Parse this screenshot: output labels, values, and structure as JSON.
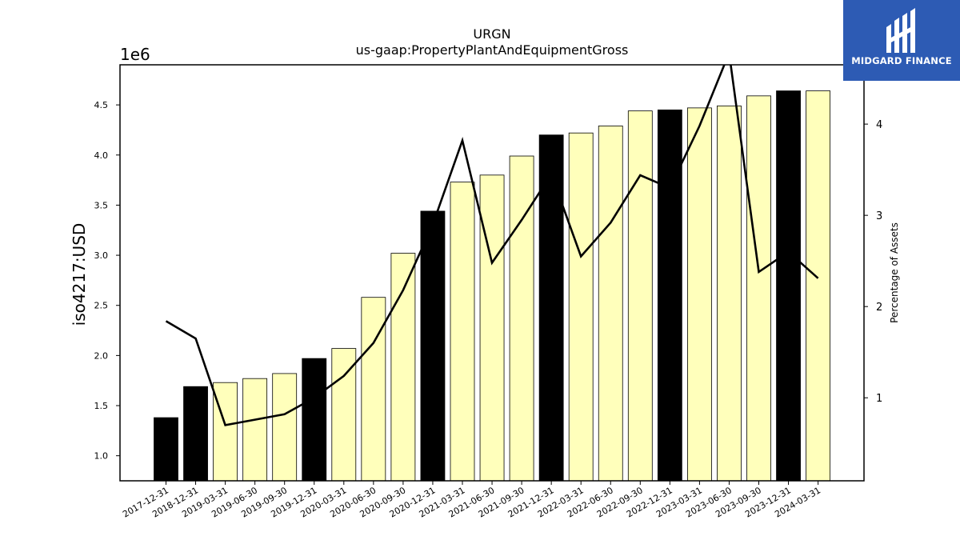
{
  "chart_data": {
    "type": "bar",
    "title": "URGN",
    "subtitle": "us-gaap:PropertyPlantAndEquipmentGross",
    "ylabel": "iso4217:USD",
    "y_offset_label": "1e6",
    "y2label": "Percentage of Assets",
    "categories": [
      "2017-12-31",
      "2018-12-31",
      "2019-03-31",
      "2019-06-30",
      "2019-09-30",
      "2019-12-31",
      "2020-03-31",
      "2020-06-30",
      "2020-09-30",
      "2020-12-31",
      "2021-03-31",
      "2021-06-30",
      "2021-09-30",
      "2021-12-31",
      "2022-03-31",
      "2022-06-30",
      "2022-09-30",
      "2022-12-31",
      "2023-03-31",
      "2023-06-30",
      "2023-09-30",
      "2023-12-31",
      "2024-03-31"
    ],
    "series": [
      {
        "values": [
          1380000,
          1690000,
          1730000,
          1770000,
          1820000,
          1970000,
          2070000,
          2580000,
          3020000,
          3440000,
          3730000,
          3800000,
          3990000,
          4200000,
          4220000,
          4290000,
          4440000,
          4450000,
          4470000,
          4490000,
          4590000,
          4640000,
          4640000
        ],
        "highlight": [
          true,
          true,
          false,
          false,
          false,
          true,
          false,
          false,
          false,
          true,
          false,
          false,
          false,
          true,
          false,
          false,
          false,
          true,
          false,
          false,
          false,
          true,
          false
        ]
      },
      {
        "axis": "right",
        "values": [
          1.84,
          1.65,
          0.7,
          0.76,
          0.82,
          1.0,
          1.24,
          1.6,
          2.18,
          2.9,
          3.82,
          2.48,
          2.95,
          3.45,
          2.55,
          2.92,
          3.44,
          3.3,
          3.98,
          4.78,
          2.38,
          2.6,
          2.31
        ]
      }
    ],
    "ylim": [
      750000,
      4900000
    ],
    "y_ticks": [
      1.0,
      1.5,
      2.0,
      2.5,
      3.0,
      3.5,
      4.0,
      4.5
    ],
    "y_tick_labels": [
      "1.0",
      "1.5",
      "2.0",
      "2.5",
      "3.0",
      "3.5",
      "4.0",
      "4.5"
    ],
    "y2lim": [
      0.09,
      4.65
    ],
    "y2_ticks": [
      1,
      2,
      3,
      4
    ],
    "y2_tick_labels": [
      "1",
      "2",
      "3",
      "4"
    ],
    "colors": {
      "bar_highlight": "#000000",
      "bar_normal": "#ffffbb",
      "bar_edge": "#000000",
      "line": "#000000"
    }
  },
  "logo": {
    "text": "MIDGARD FINANCE",
    "background": "#2d5bb4"
  }
}
